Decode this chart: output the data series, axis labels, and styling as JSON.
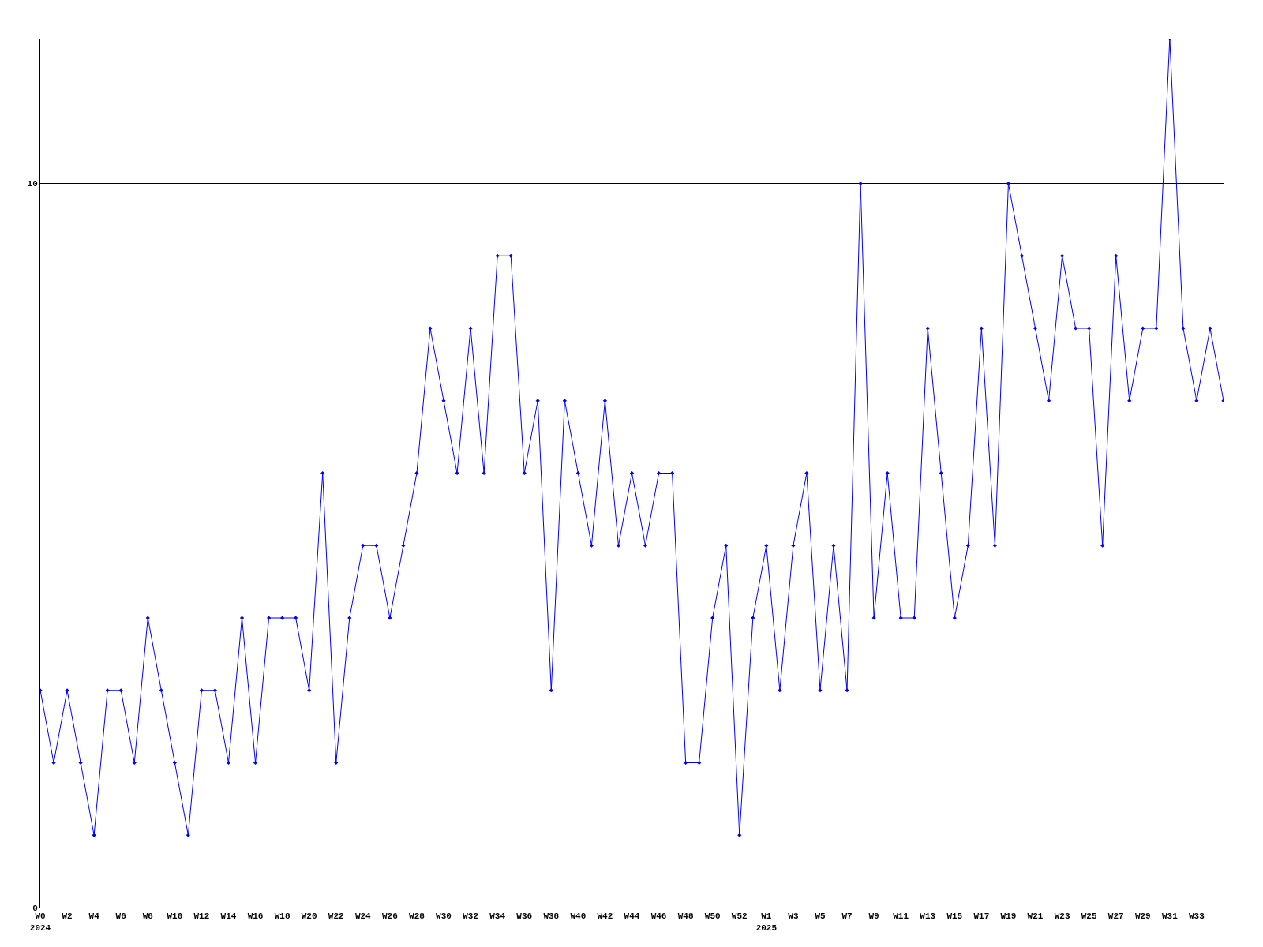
{
  "chart_data": {
    "type": "line",
    "categories": [
      "W0\n2024",
      null,
      "W2",
      null,
      "W4",
      null,
      "W6",
      null,
      "W8",
      null,
      "W10",
      null,
      "W12",
      null,
      "W14",
      null,
      "W16",
      null,
      "W18",
      null,
      "W20",
      null,
      "W22",
      null,
      "W24",
      null,
      "W26",
      null,
      "W28",
      null,
      "W30",
      null,
      "W32",
      null,
      "W34",
      null,
      "W36",
      null,
      "W38",
      null,
      "W40",
      null,
      "W42",
      null,
      "W44",
      null,
      "W46",
      null,
      "W48",
      null,
      "W50",
      null,
      "W52",
      null,
      "W1\n2025",
      null,
      "W3",
      null,
      "W5",
      null,
      "W7",
      null,
      "W9",
      null,
      "W11",
      null,
      "W13",
      null,
      "W15",
      null,
      "W17",
      null,
      "W19",
      null,
      "W21",
      null,
      "W23",
      null,
      "W25",
      null,
      "W27",
      null,
      "W29",
      null,
      "W31",
      null,
      "W33",
      null,
      null
    ],
    "series": [
      {
        "color": "#0000ff",
        "values": [
          3,
          2,
          3,
          2,
          1,
          3,
          3,
          2,
          4,
          3,
          2,
          1,
          3,
          3,
          2,
          4,
          2,
          4,
          4,
          4,
          3,
          6,
          2,
          4,
          5,
          5,
          4,
          5,
          6,
          8,
          7,
          6,
          8,
          6,
          9,
          9,
          6,
          7,
          3,
          7,
          6,
          5,
          7,
          5,
          6,
          5,
          6,
          6,
          2,
          2,
          4,
          5,
          1,
          4,
          5,
          3,
          5,
          6,
          3,
          5,
          3,
          10,
          4,
          6,
          4,
          4,
          8,
          6,
          4,
          5,
          8,
          5,
          10,
          9,
          8,
          7,
          9,
          8,
          8,
          5,
          9,
          7,
          8,
          8,
          12,
          8,
          7,
          8,
          7
        ]
      }
    ],
    "ylim": [
      0,
      12
    ],
    "yticks": [
      0,
      10
    ],
    "grid": "y",
    "marker": "diamond",
    "line_style": "solid"
  }
}
